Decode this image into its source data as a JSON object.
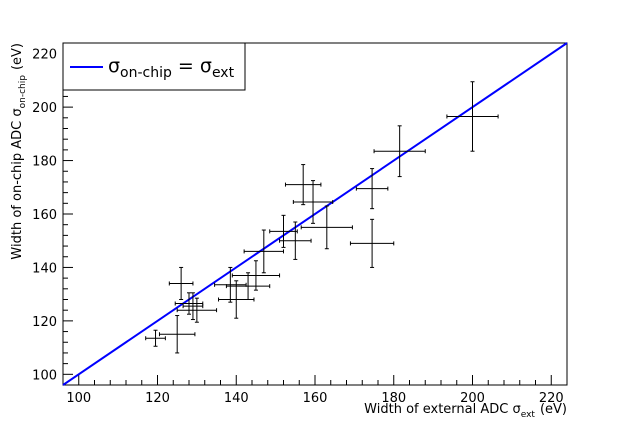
{
  "chart_data": {
    "type": "scatter",
    "xlabel": "Width of external ADC σ",
    "xlabel_sub": "ext",
    "xlabel_unit": "(eV)",
    "ylabel": "Width of on-chip ADC σ",
    "ylabel_sub": "on-chip",
    "ylabel_unit": "(eV)",
    "xlim": [
      96,
      224
    ],
    "ylim": [
      96,
      224
    ],
    "xticks": [
      100,
      120,
      140,
      160,
      180,
      200,
      220
    ],
    "yticks": [
      100,
      120,
      140,
      160,
      180,
      200,
      220
    ],
    "grid": false,
    "legend": {
      "placement": "top-left",
      "entries": [
        {
          "symbol": "σ",
          "sub1": "on-chip",
          "eq": " = ",
          "symbol2": "σ",
          "sub2": "ext",
          "color": "#0000ff"
        }
      ]
    },
    "line": {
      "name": "σon-chip = σext",
      "x": [
        96,
        224
      ],
      "y": [
        96,
        224
      ],
      "color": "#0000ff"
    },
    "points": [
      {
        "x": 119.5,
        "y": 113.5,
        "xerr": 2.5,
        "yerr": 3.0
      },
      {
        "x": 125.0,
        "y": 115.0,
        "xerr": 4.5,
        "yerr": 7.0
      },
      {
        "x": 126.0,
        "y": 134.0,
        "xerr": 3.0,
        "yerr": 6.0
      },
      {
        "x": 128.0,
        "y": 126.5,
        "xerr": 3.5,
        "yerr": 4.0
      },
      {
        "x": 129.0,
        "y": 125.5,
        "xerr": 2.5,
        "yerr": 5.0
      },
      {
        "x": 130.0,
        "y": 124.0,
        "xerr": 5.0,
        "yerr": 4.5
      },
      {
        "x": 138.5,
        "y": 133.5,
        "xerr": 4.0,
        "yerr": 6.5
      },
      {
        "x": 140.0,
        "y": 128.0,
        "xerr": 4.5,
        "yerr": 7.0
      },
      {
        "x": 143.0,
        "y": 133.0,
        "xerr": 5.5,
        "yerr": 5.0
      },
      {
        "x": 145.0,
        "y": 137.0,
        "xerr": 6.0,
        "yerr": 5.5
      },
      {
        "x": 147.0,
        "y": 146.0,
        "xerr": 5.0,
        "yerr": 8.0
      },
      {
        "x": 152.0,
        "y": 153.5,
        "xerr": 3.5,
        "yerr": 6.0
      },
      {
        "x": 155.0,
        "y": 150.0,
        "xerr": 4.0,
        "yerr": 7.0
      },
      {
        "x": 157.0,
        "y": 171.0,
        "xerr": 4.5,
        "yerr": 7.5
      },
      {
        "x": 159.5,
        "y": 164.5,
        "xerr": 5.0,
        "yerr": 8.0
      },
      {
        "x": 163.0,
        "y": 155.0,
        "xerr": 6.5,
        "yerr": 8.0
      },
      {
        "x": 174.5,
        "y": 149.0,
        "xerr": 5.5,
        "yerr": 9.0
      },
      {
        "x": 174.5,
        "y": 169.5,
        "xerr": 4.0,
        "yerr": 7.5
      },
      {
        "x": 181.5,
        "y": 183.5,
        "xerr": 6.5,
        "yerr": 9.5
      },
      {
        "x": 200.0,
        "y": 196.5,
        "xerr": 6.5,
        "yerr": 13.0
      }
    ]
  }
}
